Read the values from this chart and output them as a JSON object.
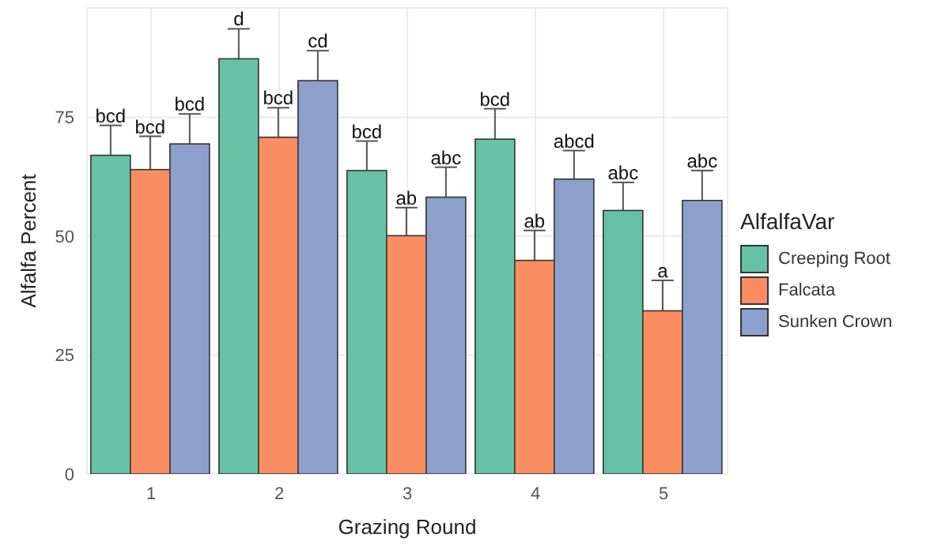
{
  "chart_data": {
    "type": "bar",
    "xlabel": "Grazing Round",
    "ylabel": "Alfalfa Percent",
    "legend_title": "AlfalfaVar",
    "categories": [
      "1",
      "2",
      "3",
      "4",
      "5"
    ],
    "ylim": [
      0,
      98
    ],
    "yticks": [
      0,
      25,
      50,
      75
    ],
    "grid": true,
    "legend": "right",
    "series": [
      {
        "name": "Creeping Root",
        "color": "#66c2a5",
        "values": [
          67,
          87.3,
          63.8,
          70.4,
          55.4
        ],
        "errors": [
          6.3,
          6.3,
          6.2,
          6.4,
          5.9
        ],
        "value_labels": [
          "bcd",
          "d",
          "bcd",
          "bcd",
          "abc"
        ]
      },
      {
        "name": "Falcata",
        "color": "#fc8d62",
        "values": [
          64,
          70.8,
          50.1,
          44.9,
          34.3
        ],
        "errors": [
          7,
          6.2,
          5.9,
          6.3,
          6.4
        ],
        "value_labels": [
          "bcd",
          "bcd",
          "ab",
          "ab",
          "a"
        ]
      },
      {
        "name": "Sunken Crown",
        "color": "#8da0cb",
        "values": [
          69.4,
          82.7,
          58.2,
          62,
          57.5
        ],
        "errors": [
          6.3,
          6.3,
          6.3,
          6,
          6.3
        ],
        "value_labels": [
          "bcd",
          "cd",
          "abc",
          "abcd",
          "abc"
        ]
      }
    ]
  }
}
